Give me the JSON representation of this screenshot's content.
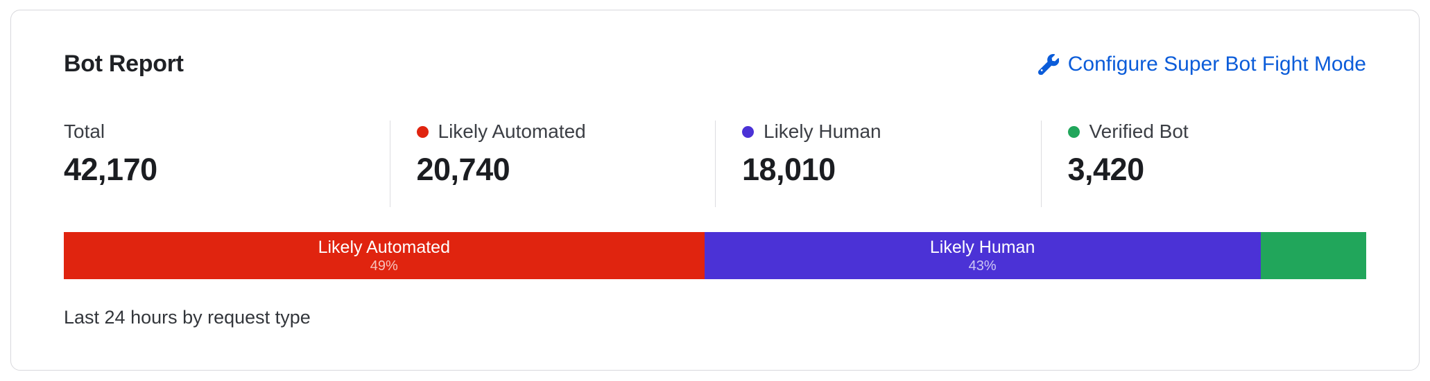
{
  "card": {
    "title": "Bot Report",
    "configure_link": {
      "label": "Configure Super Bot Fight Mode",
      "color": "#0b5cd9"
    },
    "stats": [
      {
        "label": "Total",
        "value": "42,170",
        "dot_color": null
      },
      {
        "label": "Likely Automated",
        "value": "20,740",
        "dot_color": "#e0240f"
      },
      {
        "label": "Likely Human",
        "value": "18,010",
        "dot_color": "#4b32d6"
      },
      {
        "label": "Verified Bot",
        "value": "3,420",
        "dot_color": "#21a65b"
      }
    ],
    "footer": "Last 24 hours by request type"
  },
  "chart_data": {
    "type": "bar",
    "stacked": true,
    "orientation": "horizontal",
    "title": "Bot Report",
    "caption": "Last 24 hours by request type",
    "categories": [
      "Likely Automated",
      "Likely Human",
      "Verified Bot"
    ],
    "values": [
      20740,
      18010,
      3420
    ],
    "total": 42170,
    "segments": [
      {
        "label": "Likely Automated",
        "percent": "49%",
        "value": 20740,
        "width_pct": 49.18,
        "color": "#e0240f",
        "show_label": true
      },
      {
        "label": "Likely Human",
        "percent": "43%",
        "value": 18010,
        "width_pct": 42.71,
        "color": "#4b32d6",
        "show_label": true
      },
      {
        "label": "",
        "percent": "",
        "value": 3420,
        "width_pct": 8.11,
        "color": "#21a65b",
        "show_label": false
      }
    ]
  }
}
